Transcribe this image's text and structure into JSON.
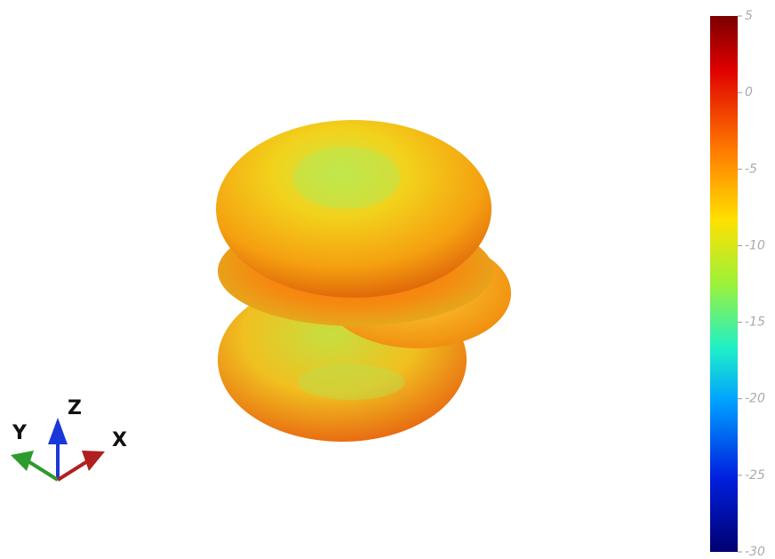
{
  "colorbar": {
    "range": [
      -30,
      5
    ],
    "ticks": [
      5,
      0,
      -5,
      -10,
      -15,
      -20,
      -25,
      -30
    ]
  },
  "axes": {
    "x": "X",
    "y": "Y",
    "z": "Z"
  }
}
